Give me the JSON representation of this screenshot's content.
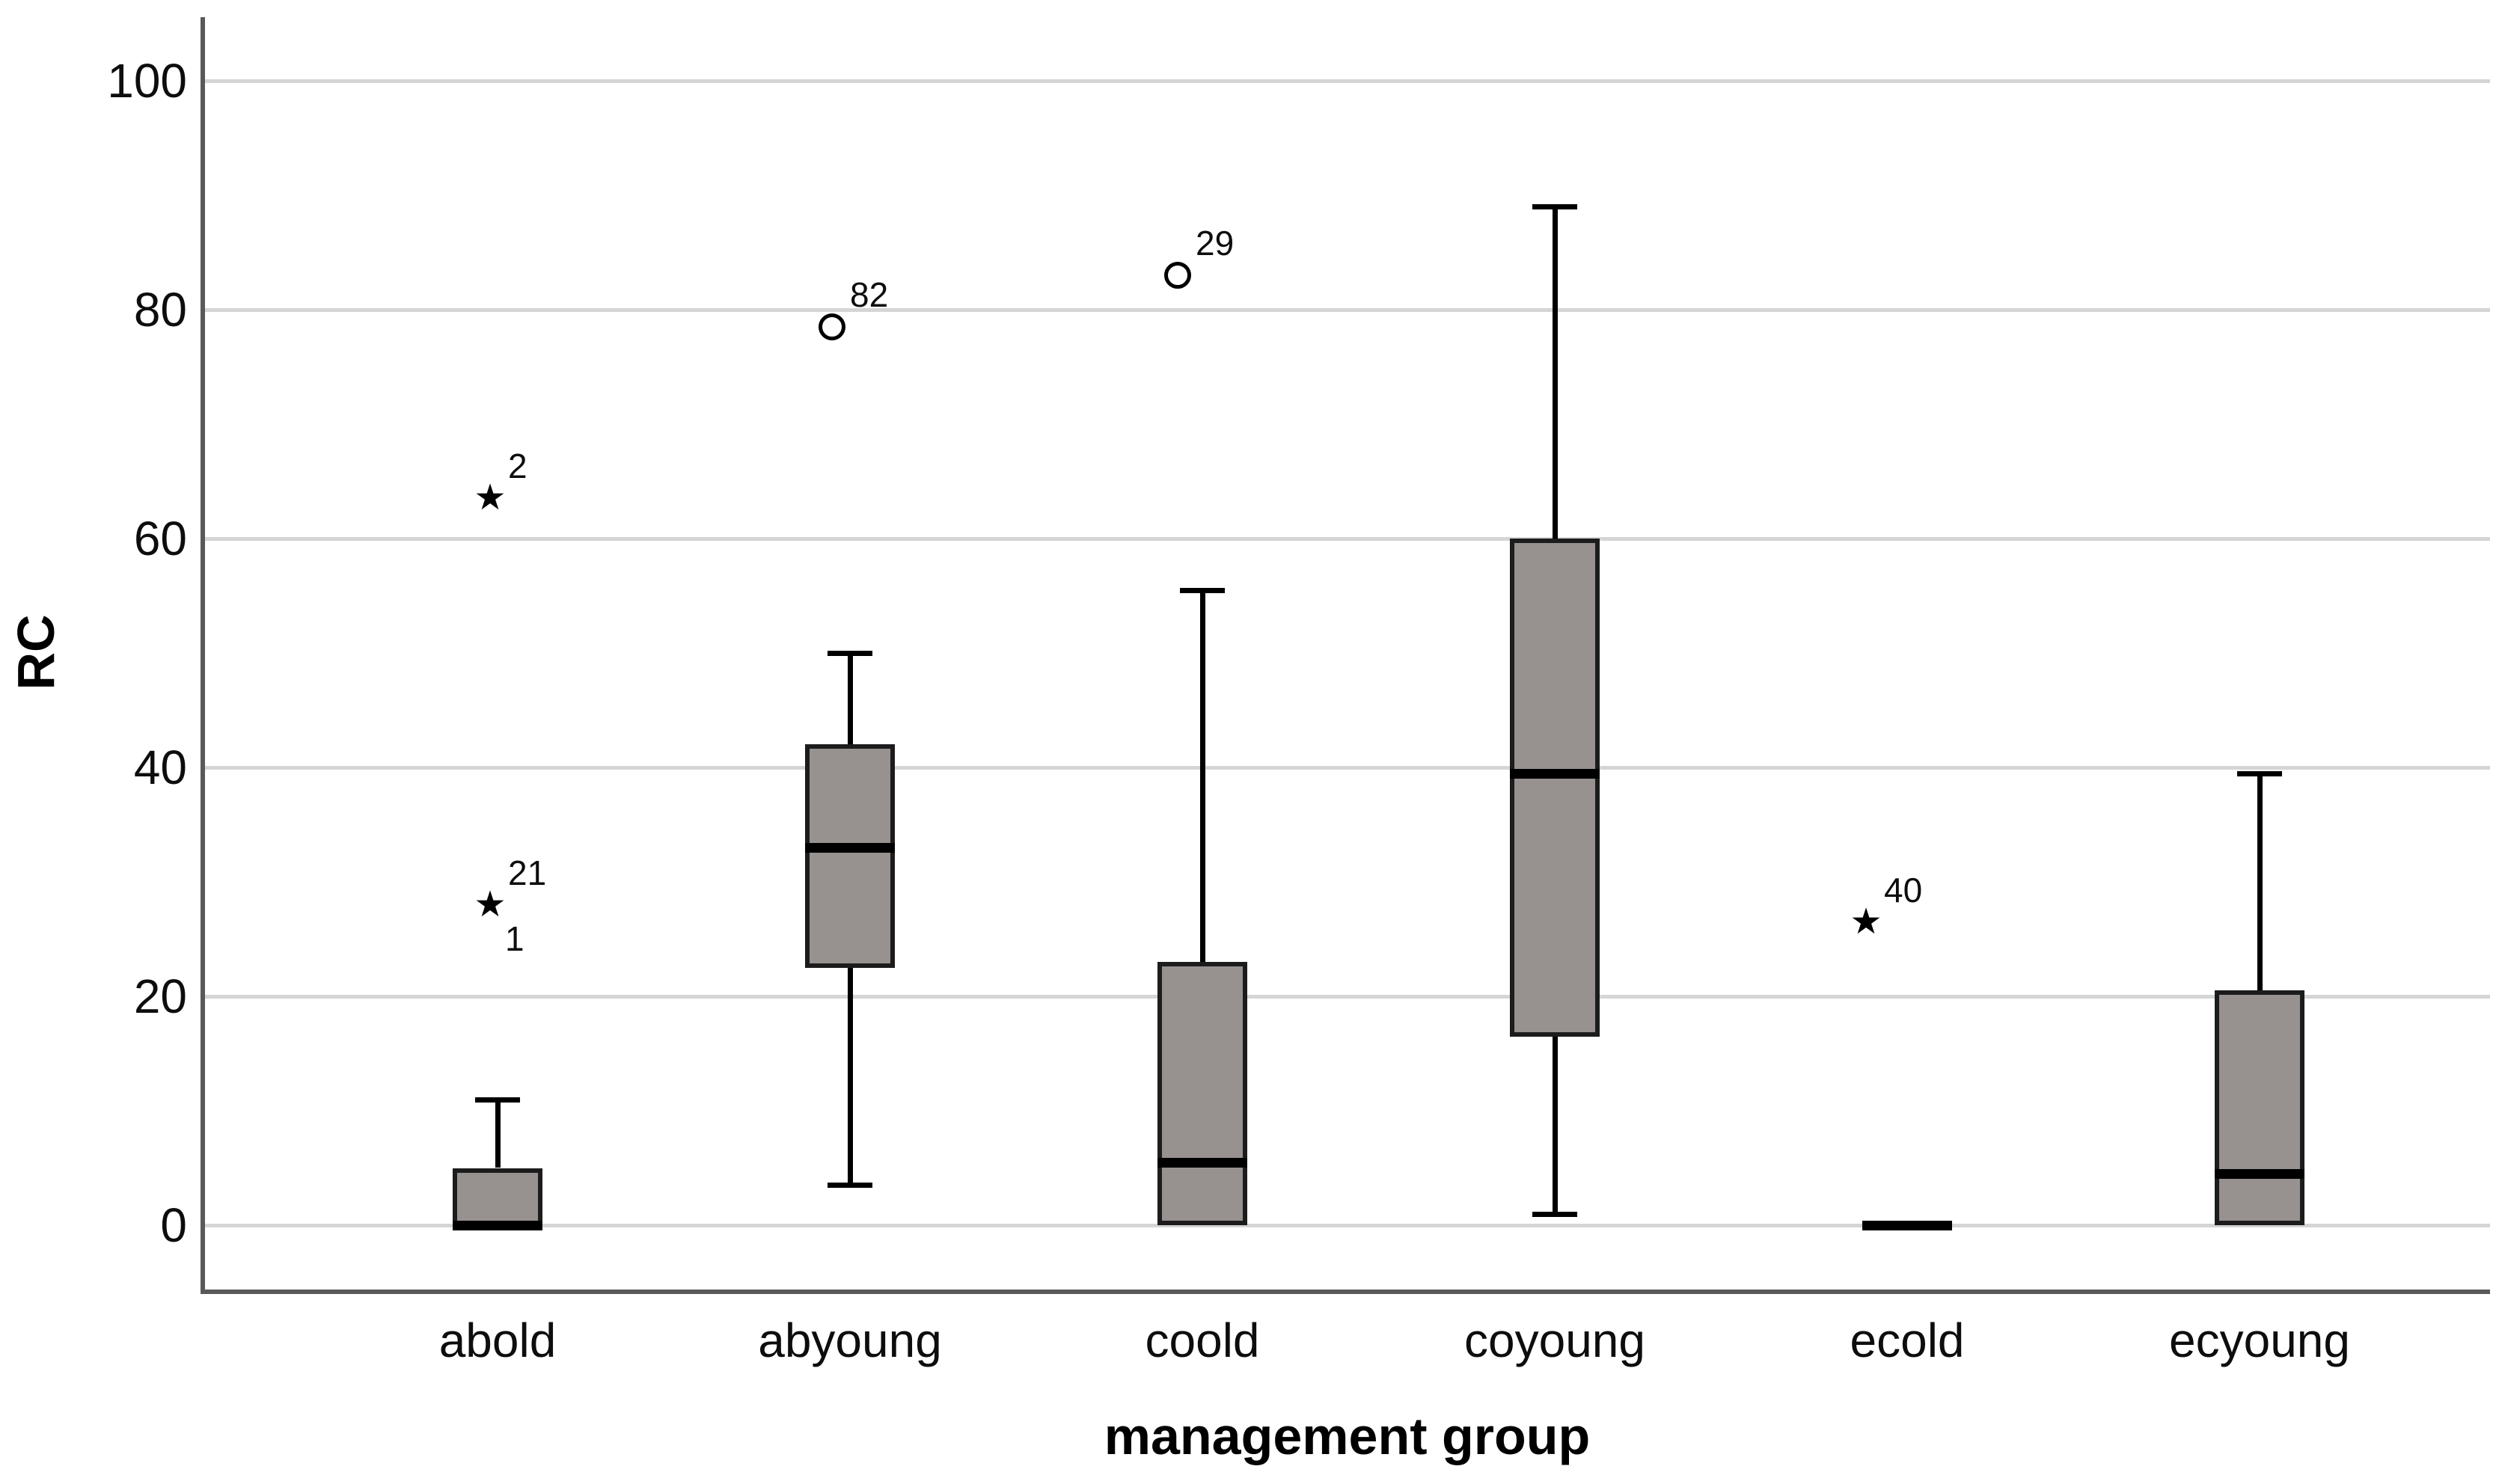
{
  "chart_data": {
    "type": "boxplot",
    "title": "",
    "xlabel": "management group",
    "ylabel": "RC",
    "ylim": [
      0,
      100
    ],
    "yticks": [
      0,
      20,
      40,
      60,
      80,
      100
    ],
    "grid": "horizontal",
    "legend_position": "none",
    "categories": [
      "abold",
      "abyoung",
      "coold",
      "coyoung",
      "ecold",
      "ecyoung"
    ],
    "boxes": [
      {
        "category": "abold",
        "whisker_low": 0,
        "q1": 0,
        "median": 0,
        "q3": 5,
        "whisker_high": 11,
        "outliers": [
          {
            "value": 63.5,
            "marker": "star",
            "label_above": "2",
            "label_below": "",
            "x_offset": -10
          },
          {
            "value": 28,
            "marker": "star",
            "label_above": "21",
            "label_below": "1",
            "x_offset": -10
          }
        ]
      },
      {
        "category": "abyoung",
        "whisker_low": 3.5,
        "q1": 22.5,
        "median": 33,
        "q3": 42,
        "whisker_high": 50,
        "outliers": [
          {
            "value": 78.5,
            "marker": "circle",
            "label_above": "82",
            "label_below": "",
            "x_offset": -24
          }
        ]
      },
      {
        "category": "coold",
        "whisker_low": 0,
        "q1": 0,
        "median": 5.5,
        "q3": 23,
        "whisker_high": 55.5,
        "outliers": [
          {
            "value": 83,
            "marker": "circle",
            "label_above": "29",
            "label_below": "",
            "x_offset": -33
          }
        ]
      },
      {
        "category": "coyoung",
        "whisker_low": 1,
        "q1": 16.5,
        "median": 39.5,
        "q3": 60,
        "whisker_high": 89,
        "outliers": []
      },
      {
        "category": "ecold",
        "whisker_low": 0,
        "q1": 0,
        "median": 0,
        "q3": 0,
        "whisker_high": 0,
        "outliers": [
          {
            "value": 26.5,
            "marker": "star",
            "label_above": "40",
            "label_below": "",
            "x_offset": -55
          }
        ]
      },
      {
        "category": "ecyoung",
        "whisker_low": 0,
        "q1": 0,
        "median": 4.5,
        "q3": 20.5,
        "whisker_high": 39.5,
        "outliers": []
      }
    ],
    "colors": {
      "background": "#ffffff",
      "box_fill": "#97918f",
      "box_border": "#1c1c1c",
      "median": "#000000",
      "whisker": "#000000",
      "gridline": "#d5d5d5",
      "axis_line": "#595959",
      "text": "#0d0d0d"
    }
  }
}
